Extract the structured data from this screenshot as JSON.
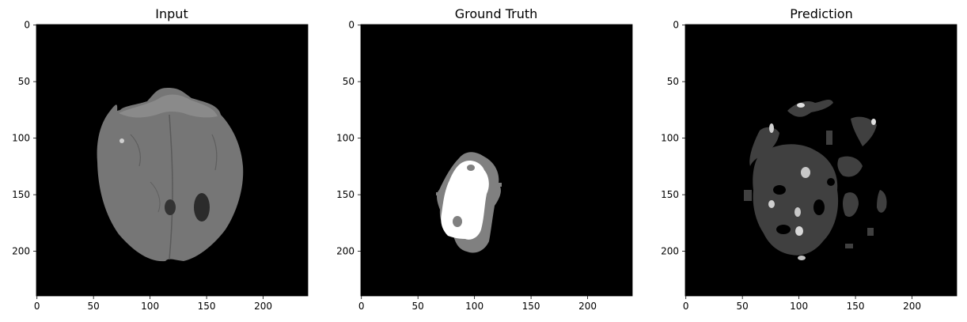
{
  "panels": [
    {
      "id": "input",
      "title": "Input",
      "x_ticks": [
        "0",
        "50",
        "100",
        "150",
        "200"
      ],
      "y_ticks": [
        "0",
        "50",
        "100",
        "150",
        "200"
      ]
    },
    {
      "id": "ground-truth",
      "title": "Ground Truth",
      "x_ticks": [
        "0",
        "50",
        "100",
        "150",
        "200"
      ],
      "y_ticks": [
        "0",
        "50",
        "100",
        "150",
        "200"
      ]
    },
    {
      "id": "prediction",
      "title": "Prediction",
      "x_ticks": [
        "0",
        "50",
        "100",
        "150",
        "200"
      ],
      "y_ticks": [
        "0",
        "50",
        "100",
        "150",
        "200"
      ]
    }
  ],
  "axis": {
    "tick_values": [
      0,
      50,
      100,
      150,
      200
    ],
    "xlim": [
      0,
      240
    ],
    "ylim": [
      0,
      240
    ]
  },
  "colors": {
    "background": "#000000",
    "brain_tissue": "#7a7a7a",
    "tumor_core": "#ffffff",
    "tumor_edema": "#808080",
    "prediction_region": "#404040",
    "prediction_highlight": "#c8c8c8"
  }
}
